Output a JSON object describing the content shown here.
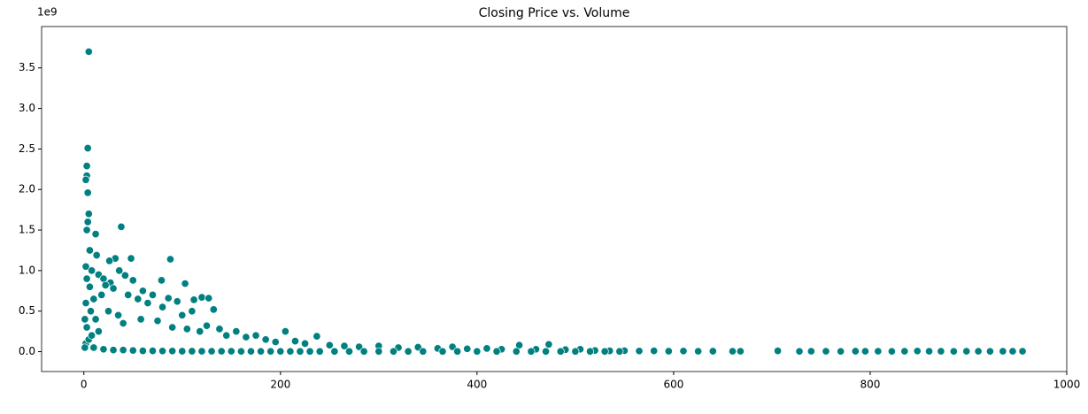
{
  "chart_data": {
    "type": "scatter",
    "title": "Closing Price vs. Volume",
    "y_offset_label": "1e9",
    "color": "#008080",
    "xlim": [
      -43,
      1000
    ],
    "xticks": [
      0,
      200,
      400,
      600,
      800,
      1000
    ],
    "ylim": [
      -245000000,
      4010000000
    ],
    "yticks": [
      {
        "value": 0,
        "label": "0.0"
      },
      {
        "value": 500000000,
        "label": "0.5"
      },
      {
        "value": 1000000000,
        "label": "1.0"
      },
      {
        "value": 1500000000,
        "label": "1.5"
      },
      {
        "value": 2000000000,
        "label": "2.0"
      },
      {
        "value": 2500000000,
        "label": "2.5"
      },
      {
        "value": 3000000000,
        "label": "3.0"
      },
      {
        "value": 3500000000,
        "label": "3.5"
      }
    ],
    "x": [
      5,
      4,
      3,
      3,
      2,
      4,
      5,
      4,
      3,
      38,
      12,
      48,
      88,
      32,
      26,
      13,
      6,
      2,
      8,
      15,
      20,
      27,
      36,
      42,
      50,
      79,
      103,
      60,
      70,
      86,
      95,
      112,
      120,
      127,
      132,
      110,
      100,
      80,
      65,
      55,
      45,
      30,
      22,
      18,
      10,
      6,
      3,
      2,
      1,
      3,
      7,
      12,
      25,
      35,
      40,
      58,
      75,
      90,
      105,
      118,
      125,
      138,
      145,
      155,
      165,
      175,
      185,
      195,
      205,
      215,
      225,
      237,
      250,
      265,
      280,
      300,
      320,
      340,
      360,
      375,
      390,
      410,
      425,
      443,
      460,
      473,
      490,
      505,
      520,
      535,
      550,
      565,
      580,
      595,
      610,
      625,
      640,
      660,
      668,
      706,
      728,
      740,
      755,
      770,
      785,
      795,
      808,
      822,
      835,
      848,
      860,
      872,
      885,
      898,
      910,
      922,
      935,
      945,
      955,
      10,
      20,
      30,
      40,
      50,
      60,
      70,
      80,
      90,
      100,
      110,
      120,
      130,
      140,
      150,
      160,
      170,
      180,
      190,
      200,
      210,
      220,
      230,
      240,
      255,
      270,
      285,
      300,
      315,
      330,
      345,
      365,
      380,
      400,
      420,
      440,
      455,
      470,
      485,
      500,
      515,
      530,
      545,
      2,
      5,
      8,
      15,
      1
    ],
    "values": [
      3700000000,
      2510000000,
      2290000000,
      2170000000,
      2120000000,
      1960000000,
      1700000000,
      1600000000,
      1500000000,
      1540000000,
      1450000000,
      1150000000,
      1140000000,
      1150000000,
      1120000000,
      1190000000,
      1250000000,
      1050000000,
      1000000000,
      950000000,
      900000000,
      850000000,
      1000000000,
      940000000,
      880000000,
      880000000,
      840000000,
      750000000,
      700000000,
      660000000,
      620000000,
      640000000,
      670000000,
      660000000,
      520000000,
      500000000,
      450000000,
      550000000,
      600000000,
      650000000,
      700000000,
      780000000,
      820000000,
      700000000,
      650000000,
      800000000,
      900000000,
      600000000,
      400000000,
      300000000,
      500000000,
      400000000,
      500000000,
      450000000,
      350000000,
      400000000,
      380000000,
      300000000,
      280000000,
      250000000,
      320000000,
      280000000,
      200000000,
      250000000,
      180000000,
      200000000,
      150000000,
      120000000,
      250000000,
      130000000,
      100000000,
      190000000,
      80000000,
      70000000,
      60000000,
      70000000,
      50000000,
      55000000,
      40000000,
      60000000,
      35000000,
      40000000,
      30000000,
      80000000,
      30000000,
      90000000,
      25000000,
      30000000,
      15000000,
      10000000,
      12000000,
      8000000,
      10000000,
      6000000,
      8000000,
      5000000,
      6000000,
      5000000,
      5000000,
      10000000,
      4000000,
      5000000,
      5000000,
      4000000,
      6000000,
      5000000,
      5000000,
      4000000,
      5000000,
      8000000,
      5000000,
      5000000,
      4000000,
      5000000,
      5000000,
      4000000,
      5000000,
      5000000,
      5000000,
      50000000,
      30000000,
      20000000,
      20000000,
      15000000,
      10000000,
      10000000,
      8000000,
      8000000,
      6000000,
      6000000,
      5000000,
      5000000,
      5000000,
      5000000,
      4000000,
      4000000,
      4000000,
      4000000,
      4000000,
      4000000,
      3000000,
      3000000,
      3000000,
      3000000,
      3000000,
      3000000,
      3000000,
      3000000,
      3000000,
      3000000,
      3000000,
      3000000,
      3000000,
      3000000,
      3000000,
      3000000,
      3000000,
      3000000,
      3000000,
      3000000,
      3000000,
      3000000,
      100000000,
      150000000,
      200000000,
      250000000,
      50000000
    ]
  }
}
